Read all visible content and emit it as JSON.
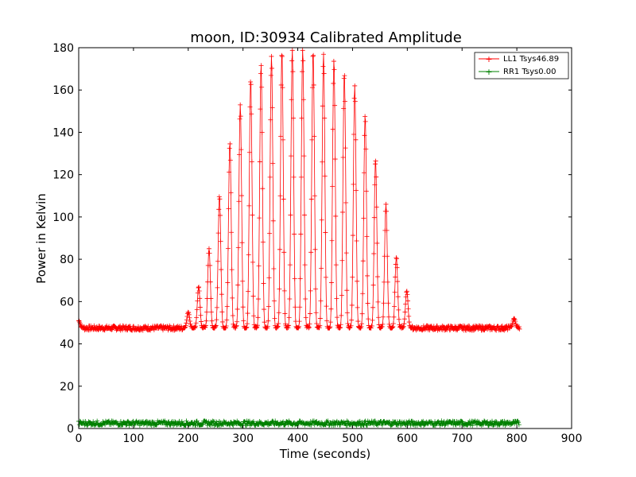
{
  "chart_data": {
    "type": "line",
    "title": "moon, ID:30934 Calibrated Amplitude",
    "xlabel": "Time (seconds)",
    "ylabel": "Power in Kelvin",
    "xlim": [
      0,
      900
    ],
    "ylim": [
      0,
      180
    ],
    "xticks": [
      0,
      100,
      200,
      300,
      400,
      500,
      600,
      700,
      800,
      900
    ],
    "yticks": [
      0,
      20,
      40,
      60,
      80,
      100,
      120,
      140,
      160,
      180
    ],
    "grid": false,
    "legend_position": "top-right",
    "scan_period_seconds": 19.1,
    "series": [
      {
        "name": "LL1 Tsys46.89",
        "color": "#ff0000",
        "marker": "plus",
        "baseline": 47.5,
        "x_range": [
          0,
          805
        ],
        "peaks": [
          {
            "x": 0,
            "y": 51
          },
          {
            "x": 200,
            "y": 55
          },
          {
            "x": 219,
            "y": 67
          },
          {
            "x": 238,
            "y": 85
          },
          {
            "x": 257,
            "y": 110
          },
          {
            "x": 276,
            "y": 135
          },
          {
            "x": 295,
            "y": 153
          },
          {
            "x": 314,
            "y": 165
          },
          {
            "x": 333,
            "y": 172
          },
          {
            "x": 352,
            "y": 176
          },
          {
            "x": 371,
            "y": 178
          },
          {
            "x": 390,
            "y": 179
          },
          {
            "x": 409,
            "y": 179
          },
          {
            "x": 428,
            "y": 178
          },
          {
            "x": 447,
            "y": 177
          },
          {
            "x": 466,
            "y": 174
          },
          {
            "x": 485,
            "y": 168
          },
          {
            "x": 504,
            "y": 162
          },
          {
            "x": 523,
            "y": 148
          },
          {
            "x": 542,
            "y": 127
          },
          {
            "x": 561,
            "y": 106
          },
          {
            "x": 580,
            "y": 81
          },
          {
            "x": 599,
            "y": 65
          },
          {
            "x": 795,
            "y": 52
          }
        ]
      },
      {
        "name": "RR1 Tsys0.00",
        "color": "#008000",
        "marker": "plus",
        "baseline": 2.5,
        "x_range": [
          0,
          805
        ],
        "peaks": []
      }
    ]
  }
}
